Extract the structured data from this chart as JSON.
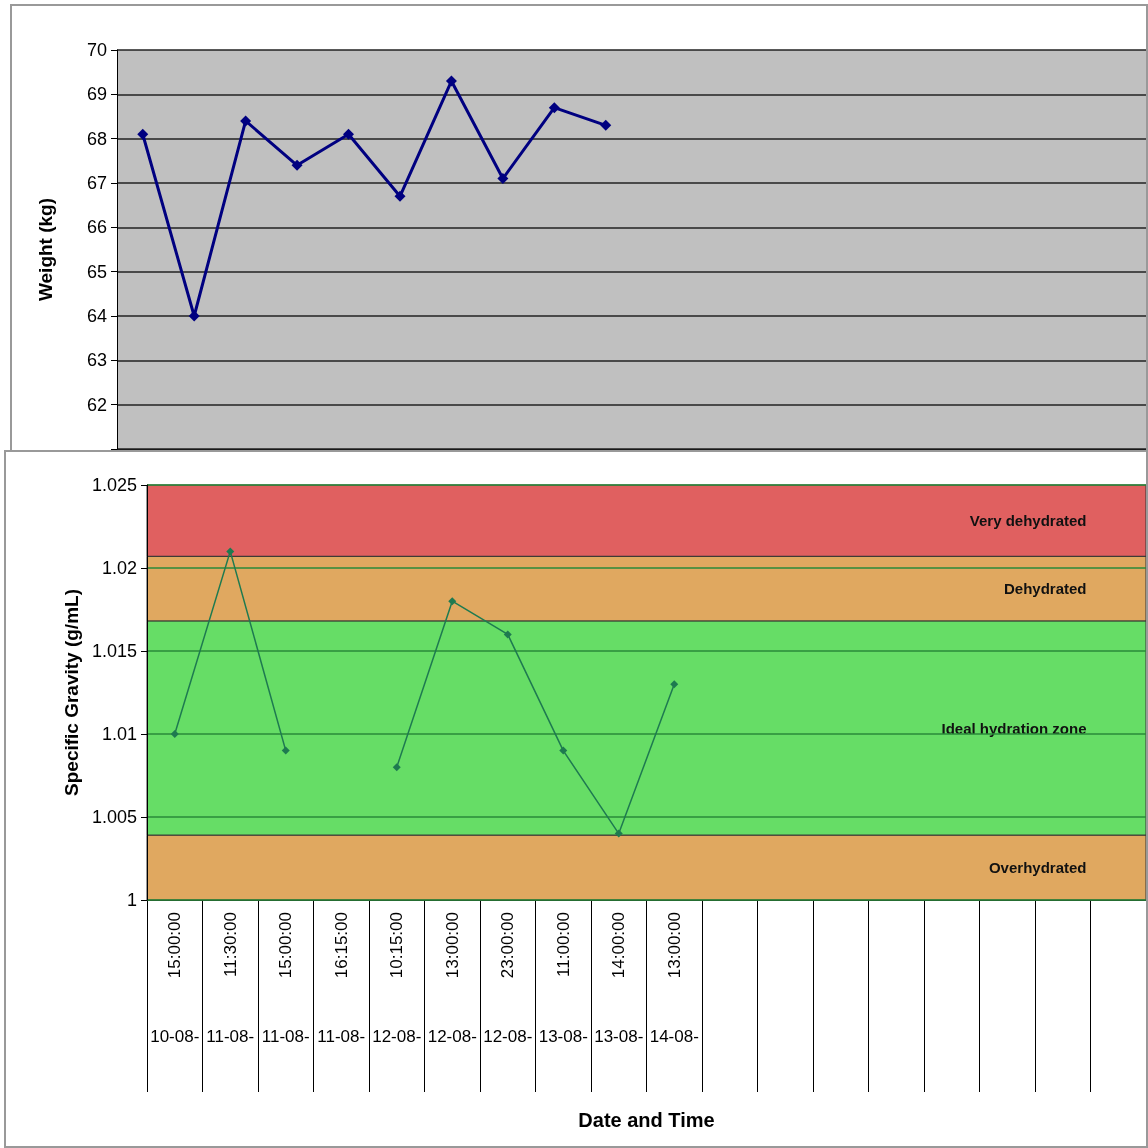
{
  "chart_data": [
    {
      "type": "line",
      "ylabel": "Weight (kg)",
      "categories": [
        null,
        null,
        null,
        null,
        null,
        null,
        null,
        null,
        null,
        null,
        null,
        null,
        null,
        null,
        null,
        null,
        null,
        null,
        null,
        null
      ],
      "series": [
        {
          "color": "#000080",
          "values": [
            68.1,
            64.0,
            68.4,
            67.4,
            68.1,
            66.7,
            69.3,
            67.1,
            68.7,
            68.3,
            null,
            null,
            null,
            null,
            null,
            null,
            null,
            null,
            null,
            null
          ]
        }
      ],
      "ylim": [
        61,
        70
      ],
      "yticks": [
        {
          "value": 61,
          "label": null
        },
        62,
        63,
        64,
        65,
        66,
        67,
        68,
        69,
        70
      ],
      "grid": "y",
      "marker": "diamond",
      "line_style": "solid",
      "tick_labels": "y"
    },
    {
      "type": "line",
      "xlabel": "Date and Time",
      "ylabel": "Specific Gravity (g/mL)",
      "categories": [
        "15:00:00\n10-08-",
        "11:30:00\n11-08-",
        "15:00:00\n11-08-",
        "16:15:00\n11-08-",
        "10:15:00\n12-08-",
        "13:00:00\n12-08-",
        "23:00:00\n12-08-",
        "11:00:00\n13-08-",
        "14:00:00\n13-08-",
        "13:00:00\n14-08-",
        null,
        null,
        null,
        null,
        null,
        null,
        null,
        null
      ],
      "series": [
        {
          "color": "#1e7a50",
          "values": [
            1.01,
            1.021,
            1.009,
            null,
            1.008,
            1.018,
            1.016,
            1.009,
            1.004,
            1.013,
            null,
            null,
            null,
            null,
            null,
            null,
            null,
            null
          ]
        }
      ],
      "ylim": [
        1,
        1.025
      ],
      "yticks": [
        1,
        1.005,
        1.01,
        1.015,
        1.02,
        1.025
      ],
      "grid": "y",
      "marker": "diamond",
      "line_style": "solid",
      "bands": [
        {
          "axis": "y",
          "from": 1.0207,
          "to": 1.025,
          "label": "Very dehydrated",
          "color": "#e06060"
        },
        {
          "axis": "y",
          "from": 1.0168,
          "to": 1.0207,
          "label": "Dehydrated",
          "color": "#e0a860"
        },
        {
          "axis": "y",
          "from": 1.0039,
          "to": 1.0168,
          "label": "Ideal hydration zone",
          "color": "#66dd66"
        },
        {
          "axis": "y",
          "from": 1,
          "to": 1.0039,
          "label": "Overhydrated",
          "color": "#e0a860"
        }
      ]
    }
  ]
}
